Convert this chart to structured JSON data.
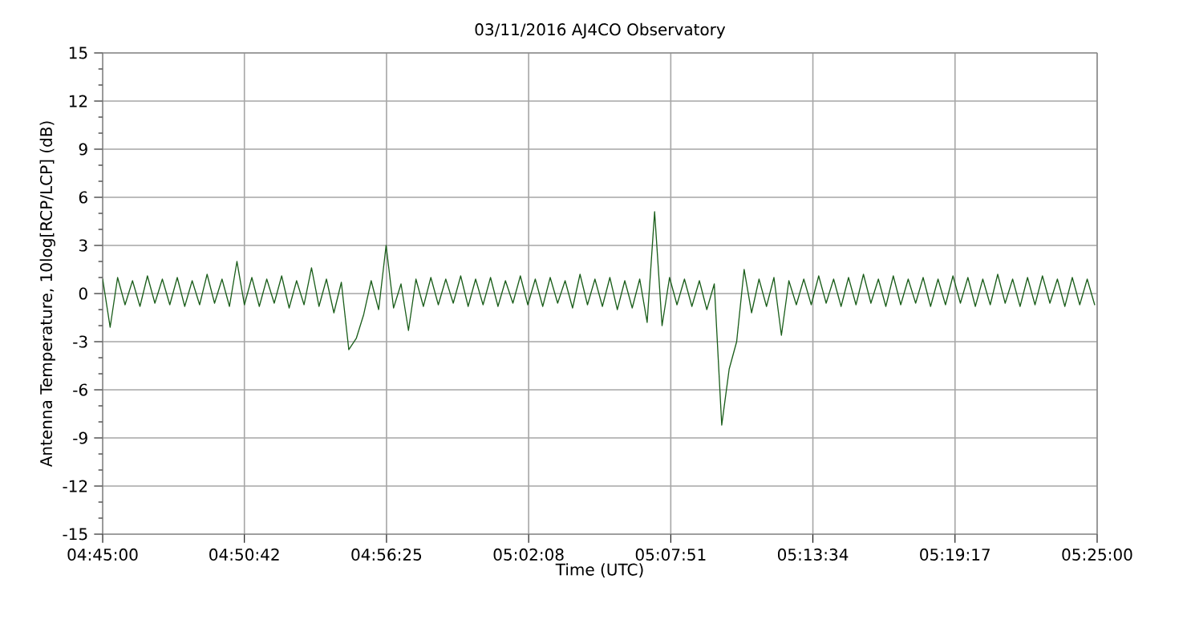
{
  "chart_data": {
    "type": "line",
    "title": "03/11/2016    AJ4CO Observatory",
    "xlabel": "Time (UTC)",
    "ylabel": "Antenna Temperature, 10log[RCP/LCP] (dB)",
    "x": [
      4.75,
      4.755,
      4.76,
      4.765,
      4.77,
      4.775,
      4.78,
      4.785,
      4.79,
      4.795,
      4.8,
      4.805,
      4.81,
      4.815,
      4.82,
      4.825,
      4.83,
      4.835,
      4.84,
      4.845,
      4.85,
      4.855,
      4.86,
      4.865,
      4.87,
      4.875,
      4.88,
      4.885,
      4.89,
      4.895,
      4.9,
      4.905,
      4.91,
      4.915,
      4.92,
      4.925,
      4.93,
      4.935,
      4.94,
      4.945,
      4.95,
      4.955,
      4.96,
      4.965,
      4.97,
      4.975,
      4.98,
      4.985,
      4.99,
      4.995,
      5.0,
      5.005,
      5.01,
      5.015,
      5.02,
      5.025,
      5.03,
      5.035,
      5.04,
      5.045,
      5.05,
      5.055,
      5.06,
      5.065,
      5.07,
      5.075,
      5.08,
      5.085,
      5.09,
      5.095,
      5.1,
      5.105,
      5.11,
      5.115,
      5.12,
      5.125,
      5.13,
      5.135,
      5.14,
      5.145,
      5.15,
      5.155,
      5.16,
      5.165,
      5.17,
      5.175,
      5.18,
      5.185,
      5.19,
      5.195,
      5.2,
      5.205,
      5.21,
      5.215,
      5.22,
      5.225,
      5.23,
      5.235,
      5.24,
      5.245,
      5.25,
      5.255,
      5.26,
      5.265,
      5.27,
      5.275,
      5.28,
      5.285,
      5.29,
      5.295,
      5.3,
      5.305,
      5.31,
      5.315,
      5.32,
      5.325,
      5.33,
      5.335,
      5.34,
      5.345,
      5.35,
      5.355,
      5.36,
      5.365,
      5.37,
      5.375,
      5.38,
      5.385,
      5.39,
      5.395,
      5.4,
      5.405,
      5.41,
      5.415
    ],
    "series": [
      {
        "color": "#1b5e1b",
        "values": [
          0.9,
          -2.1,
          1.0,
          -0.7,
          0.8,
          -0.8,
          1.1,
          -0.6,
          0.9,
          -0.7,
          1.0,
          -0.8,
          0.8,
          -0.7,
          1.2,
          -0.6,
          0.9,
          -0.8,
          2.0,
          -0.7,
          1.0,
          -0.8,
          0.9,
          -0.6,
          1.1,
          -0.9,
          0.8,
          -0.7,
          1.6,
          -0.8,
          0.9,
          -1.2,
          0.7,
          -3.5,
          -2.8,
          -1.3,
          0.8,
          -1.0,
          3.0,
          -0.9,
          0.6,
          -2.3,
          0.9,
          -0.8,
          1.0,
          -0.7,
          0.9,
          -0.6,
          1.1,
          -0.8,
          0.9,
          -0.7,
          1.0,
          -0.8,
          0.8,
          -0.6,
          1.1,
          -0.7,
          0.9,
          -0.8,
          1.0,
          -0.6,
          0.8,
          -0.9,
          1.2,
          -0.7,
          0.9,
          -0.8,
          1.0,
          -1.0,
          0.8,
          -0.9,
          0.9,
          -1.8,
          5.1,
          -2.0,
          1.0,
          -0.7,
          0.9,
          -0.8,
          0.8,
          -1.0,
          0.6,
          -8.2,
          -4.7,
          -3.0,
          1.5,
          -1.2,
          0.9,
          -0.8,
          1.0,
          -2.6,
          0.8,
          -0.7,
          0.9,
          -0.7,
          1.1,
          -0.6,
          0.9,
          -0.8,
          1.0,
          -0.7,
          1.2,
          -0.6,
          0.9,
          -0.8,
          1.1,
          -0.7,
          0.9,
          -0.6,
          1.0,
          -0.8,
          0.9,
          -0.7,
          1.1,
          -0.6,
          1.0,
          -0.8,
          0.9,
          -0.7,
          1.2,
          -0.6,
          0.9,
          -0.8,
          1.0,
          -0.7,
          1.1,
          -0.6,
          0.9,
          -0.8,
          1.0,
          -0.7,
          0.9,
          -0.7
        ]
      }
    ],
    "xlim": [
      4.75,
      5.416667
    ],
    "xticks": [
      {
        "value": 4.75,
        "label": "04:45:00"
      },
      {
        "value": 4.845,
        "label": "04:50:42"
      },
      {
        "value": 4.940278,
        "label": "04:56:25"
      },
      {
        "value": 5.035556,
        "label": "05:02:08"
      },
      {
        "value": 5.130833,
        "label": "05:07:51"
      },
      {
        "value": 5.226111,
        "label": "05:13:34"
      },
      {
        "value": 5.321389,
        "label": "05:19:17"
      },
      {
        "value": 5.416667,
        "label": "05:25:00"
      }
    ],
    "ylim": [
      -15,
      15
    ],
    "yticks": [
      -15,
      -12,
      -9,
      -6,
      -3,
      0,
      3,
      6,
      9,
      12,
      15
    ],
    "grid": true,
    "marker": "none",
    "line_style": "solid"
  }
}
